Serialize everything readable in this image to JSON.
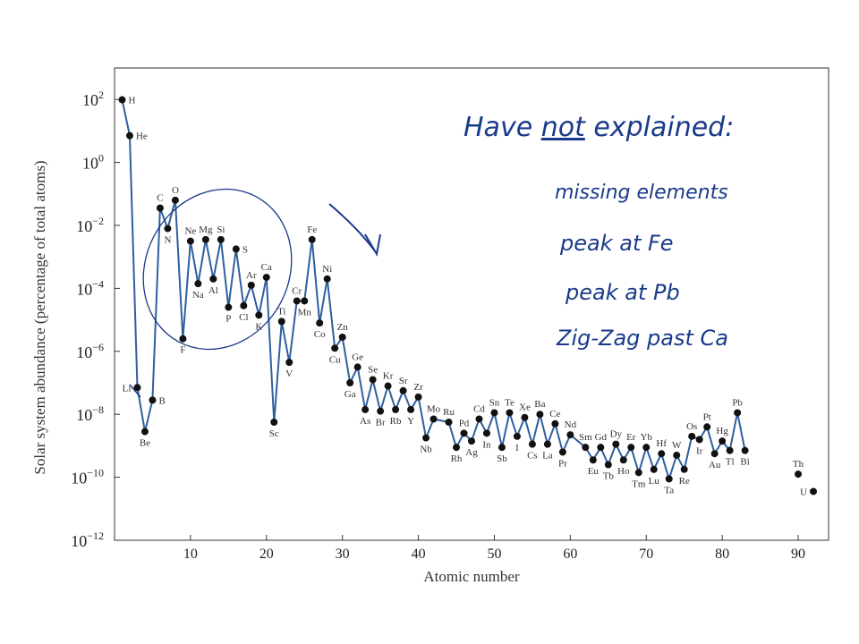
{
  "chart_data": {
    "type": "line",
    "xlabel": "Atomic number",
    "ylabel": "Solar system abundance (percentage of total atoms)",
    "xlim": [
      0,
      94
    ],
    "ylim": [
      -12,
      3
    ],
    "yscale": "log",
    "x_ticks": [
      10,
      20,
      30,
      40,
      50,
      60,
      70,
      80,
      90
    ],
    "y_ticks": [
      {
        "exp": 2,
        "base": "10",
        "sup": "2"
      },
      {
        "exp": 0,
        "base": "10",
        "sup": "0"
      },
      {
        "exp": -2,
        "base": "10",
        "sup": "−2"
      },
      {
        "exp": -4,
        "base": "10",
        "sup": "−4"
      },
      {
        "exp": -6,
        "base": "10",
        "sup": "−6"
      },
      {
        "exp": -8,
        "base": "10",
        "sup": "−8"
      },
      {
        "exp": -10,
        "base": "10",
        "sup": "−10"
      },
      {
        "exp": -12,
        "base": "10",
        "sup": "−12"
      }
    ],
    "line_color": "#2e5f9e",
    "marker_color": "#111111",
    "elements": [
      {
        "z": 1,
        "s": "H",
        "log": 1.99,
        "pos": "r"
      },
      {
        "z": 2,
        "s": "He",
        "log": 0.85,
        "pos": "r"
      },
      {
        "z": 3,
        "s": "Li",
        "log": -7.15,
        "pos": "l"
      },
      {
        "z": 4,
        "s": "Be",
        "log": -8.55,
        "pos": "b"
      },
      {
        "z": 5,
        "s": "B",
        "log": -7.55,
        "pos": "r"
      },
      {
        "z": 6,
        "s": "C",
        "log": -1.45,
        "pos": "t"
      },
      {
        "z": 7,
        "s": "N",
        "log": -2.1,
        "pos": "b"
      },
      {
        "z": 8,
        "s": "O",
        "log": -1.2,
        "pos": "t"
      },
      {
        "z": 9,
        "s": "F",
        "log": -5.6,
        "pos": "b"
      },
      {
        "z": 10,
        "s": "Ne",
        "log": -2.5,
        "pos": "t"
      },
      {
        "z": 11,
        "s": "Na",
        "log": -3.85,
        "pos": "b"
      },
      {
        "z": 12,
        "s": "Mg",
        "log": -2.45,
        "pos": "t"
      },
      {
        "z": 13,
        "s": "Al",
        "log": -3.7,
        "pos": "b"
      },
      {
        "z": 14,
        "s": "Si",
        "log": -2.45,
        "pos": "t"
      },
      {
        "z": 15,
        "s": "P",
        "log": -4.6,
        "pos": "b"
      },
      {
        "z": 16,
        "s": "S",
        "log": -2.75,
        "pos": "r"
      },
      {
        "z": 17,
        "s": "Cl",
        "log": -4.55,
        "pos": "b"
      },
      {
        "z": 18,
        "s": "Ar",
        "log": -3.9,
        "pos": "t"
      },
      {
        "z": 19,
        "s": "K",
        "log": -4.85,
        "pos": "b"
      },
      {
        "z": 20,
        "s": "Ca",
        "log": -3.65,
        "pos": "t"
      },
      {
        "z": 21,
        "s": "Sc",
        "log": -8.25,
        "pos": "b"
      },
      {
        "z": 22,
        "s": "Ti",
        "log": -5.05,
        "pos": "t"
      },
      {
        "z": 23,
        "s": "V",
        "log": -6.35,
        "pos": "b"
      },
      {
        "z": 24,
        "s": "Cr",
        "log": -4.4,
        "pos": "t"
      },
      {
        "z": 25,
        "s": "Mn",
        "log": -4.4,
        "pos": "b"
      },
      {
        "z": 26,
        "s": "Fe",
        "log": -2.45,
        "pos": "t"
      },
      {
        "z": 27,
        "s": "Co",
        "log": -5.1,
        "pos": "b"
      },
      {
        "z": 28,
        "s": "Ni",
        "log": -3.7,
        "pos": "t"
      },
      {
        "z": 29,
        "s": "Cu",
        "log": -5.9,
        "pos": "b"
      },
      {
        "z": 30,
        "s": "Zn",
        "log": -5.55,
        "pos": "t"
      },
      {
        "z": 31,
        "s": "Ga",
        "log": -7.0,
        "pos": "b"
      },
      {
        "z": 32,
        "s": "Ge",
        "log": -6.5,
        "pos": "t"
      },
      {
        "z": 33,
        "s": "As",
        "log": -7.85,
        "pos": "b"
      },
      {
        "z": 34,
        "s": "Se",
        "log": -6.9,
        "pos": "t"
      },
      {
        "z": 35,
        "s": "Br",
        "log": -7.9,
        "pos": "b"
      },
      {
        "z": 36,
        "s": "Kr",
        "log": -7.1,
        "pos": "t"
      },
      {
        "z": 37,
        "s": "Rb",
        "log": -7.85,
        "pos": "b"
      },
      {
        "z": 38,
        "s": "Sr",
        "log": -7.25,
        "pos": "t"
      },
      {
        "z": 39,
        "s": "Y",
        "log": -7.85,
        "pos": "b"
      },
      {
        "z": 40,
        "s": "Zr",
        "log": -7.45,
        "pos": "t"
      },
      {
        "z": 41,
        "s": "Nb",
        "log": -8.75,
        "pos": "b"
      },
      {
        "z": 42,
        "s": "Mo",
        "log": -8.15,
        "pos": "t"
      },
      {
        "z": 44,
        "s": "Ru",
        "log": -8.25,
        "pos": "t"
      },
      {
        "z": 45,
        "s": "Rh",
        "log": -9.05,
        "pos": "b"
      },
      {
        "z": 46,
        "s": "Pd",
        "log": -8.6,
        "pos": "t"
      },
      {
        "z": 47,
        "s": "Ag",
        "log": -8.85,
        "pos": "b"
      },
      {
        "z": 48,
        "s": "Cd",
        "log": -8.15,
        "pos": "t"
      },
      {
        "z": 49,
        "s": "In",
        "log": -8.6,
        "pos": "b"
      },
      {
        "z": 50,
        "s": "Sn",
        "log": -7.95,
        "pos": "t"
      },
      {
        "z": 51,
        "s": "Sb",
        "log": -9.05,
        "pos": "b"
      },
      {
        "z": 52,
        "s": "Te",
        "log": -7.95,
        "pos": "t"
      },
      {
        "z": 53,
        "s": "I",
        "log": -8.7,
        "pos": "b"
      },
      {
        "z": 54,
        "s": "Xe",
        "log": -8.1,
        "pos": "t"
      },
      {
        "z": 55,
        "s": "Cs",
        "log": -8.95,
        "pos": "b"
      },
      {
        "z": 56,
        "s": "Ba",
        "log": -8.0,
        "pos": "t"
      },
      {
        "z": 57,
        "s": "La",
        "log": -8.95,
        "pos": "b"
      },
      {
        "z": 58,
        "s": "Ce",
        "log": -8.3,
        "pos": "t"
      },
      {
        "z": 59,
        "s": "Pr",
        "log": -9.2,
        "pos": "b"
      },
      {
        "z": 60,
        "s": "Nd",
        "log": -8.65,
        "pos": "t"
      },
      {
        "z": 62,
        "s": "Sm",
        "log": -9.05,
        "pos": "t"
      },
      {
        "z": 63,
        "s": "Eu",
        "log": -9.45,
        "pos": "b"
      },
      {
        "z": 64,
        "s": "Gd",
        "log": -9.05,
        "pos": "t"
      },
      {
        "z": 65,
        "s": "Tb",
        "log": -9.6,
        "pos": "b"
      },
      {
        "z": 66,
        "s": "Dy",
        "log": -8.95,
        "pos": "t"
      },
      {
        "z": 67,
        "s": "Ho",
        "log": -9.45,
        "pos": "b"
      },
      {
        "z": 68,
        "s": "Er",
        "log": -9.05,
        "pos": "t"
      },
      {
        "z": 69,
        "s": "Tm",
        "log": -9.85,
        "pos": "b"
      },
      {
        "z": 70,
        "s": "Yb",
        "log": -9.05,
        "pos": "t"
      },
      {
        "z": 71,
        "s": "Lu",
        "log": -9.75,
        "pos": "b"
      },
      {
        "z": 72,
        "s": "Hf",
        "log": -9.25,
        "pos": "t"
      },
      {
        "z": 73,
        "s": "Ta",
        "log": -10.05,
        "pos": "b"
      },
      {
        "z": 74,
        "s": "W",
        "log": -9.3,
        "pos": "t"
      },
      {
        "z": 75,
        "s": "Re",
        "log": -9.75,
        "pos": "b"
      },
      {
        "z": 76,
        "s": "Os",
        "log": -8.7,
        "pos": "t"
      },
      {
        "z": 77,
        "s": "Ir",
        "log": -8.8,
        "pos": "b"
      },
      {
        "z": 78,
        "s": "Pt",
        "log": -8.4,
        "pos": "t"
      },
      {
        "z": 79,
        "s": "Au",
        "log": -9.25,
        "pos": "b"
      },
      {
        "z": 80,
        "s": "Hg",
        "log": -8.85,
        "pos": "t"
      },
      {
        "z": 81,
        "s": "Tl",
        "log": -9.15,
        "pos": "b"
      },
      {
        "z": 82,
        "s": "Pb",
        "log": -7.95,
        "pos": "t"
      },
      {
        "z": 83,
        "s": "Bi",
        "log": -9.15,
        "pos": "b"
      },
      {
        "z": 90,
        "s": "Th",
        "log": -9.9,
        "pos": "t",
        "isolated": true
      },
      {
        "z": 92,
        "s": "U",
        "log": -10.45,
        "pos": "l",
        "isolated": true
      }
    ]
  },
  "annotations": {
    "heading_pre": "Have ",
    "heading_emph": "not",
    "heading_post": " explained:",
    "items": [
      "missing elements",
      "peak at Fe",
      "peak at Pb",
      "Zig-Zag past Ca"
    ],
    "ink_color": "#1a3a8a"
  }
}
